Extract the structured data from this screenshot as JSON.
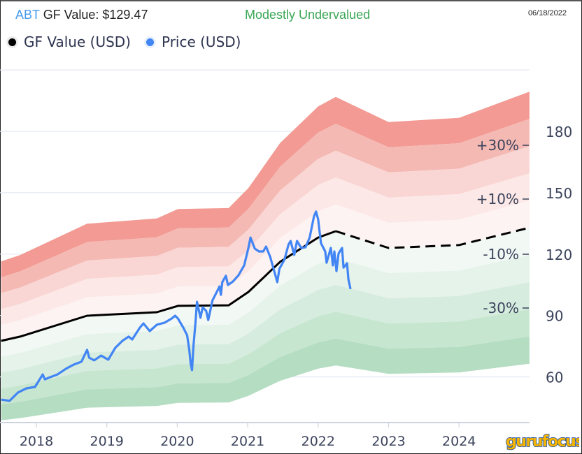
{
  "header": {
    "ticker": "ABT",
    "gf_value_text": " GF Value: $129.47",
    "valuation_status": "Modestly Undervalued",
    "date": "06/18/2022"
  },
  "legend": [
    {
      "label": "GF Value (USD)",
      "color": "#000000"
    },
    {
      "label": "Price (USD)",
      "color": "#4285f4"
    }
  ],
  "logo_text": "gurufocus",
  "colors": {
    "price": "#4285f4",
    "gf_value": "#000000",
    "status_green": "#3aa655",
    "ticker_blue": "#4a9bec",
    "band_red": [
      "#f29a93",
      "#f5b9b4",
      "#f9d6d3",
      "#fce8e6",
      "#fdf3f2"
    ],
    "band_green": [
      "#f2f8f4",
      "#e6f3ea",
      "#d6ecde",
      "#c6e6d0",
      "#b4ddc2"
    ]
  },
  "chart_data": {
    "type": "line",
    "title": "ABT GF Value",
    "xlabel": "",
    "ylabel": "",
    "xlim": [
      2017.5,
      2025.0
    ],
    "ylim": [
      42,
      212
    ],
    "x_ticks": [
      "2018",
      "2019",
      "2020",
      "2021",
      "2022",
      "2023",
      "2024"
    ],
    "y_ticks": [
      "60",
      "90",
      "120",
      "150",
      "180"
    ],
    "band_labels": [
      "+30%",
      "+10%",
      "-10%",
      "-30%"
    ],
    "band_multipliers": [
      1.5,
      1.4,
      1.3,
      1.2,
      1.1,
      1.0,
      0.9,
      0.8,
      0.7,
      0.6,
      0.5
    ],
    "grid": true,
    "legend_position": "top-left",
    "series": [
      {
        "name": "GF Value (USD)",
        "projected_from": 2022.25,
        "points": [
          [
            2017.5,
            77.6
          ],
          [
            2017.77,
            79.7
          ],
          [
            2018.72,
            89.9
          ],
          [
            2019.71,
            91.6
          ],
          [
            2020.01,
            94.7
          ],
          [
            2020.73,
            95.0
          ],
          [
            2021.01,
            101.5
          ],
          [
            2021.46,
            116.2
          ],
          [
            2022.0,
            128.1
          ],
          [
            2022.25,
            131.2
          ],
          [
            2023.0,
            123.0
          ],
          [
            2024.0,
            124.4
          ],
          [
            2025.0,
            132.9
          ]
        ]
      },
      {
        "name": "Price (USD)",
        "points": [
          [
            2017.5,
            48.9
          ],
          [
            2017.62,
            48.3
          ],
          [
            2017.74,
            52.4
          ],
          [
            2017.86,
            54.4
          ],
          [
            2017.98,
            55.1
          ],
          [
            2018.06,
            59.5
          ],
          [
            2018.09,
            61.2
          ],
          [
            2018.12,
            58.8
          ],
          [
            2018.2,
            59.9
          ],
          [
            2018.3,
            61.2
          ],
          [
            2018.42,
            64.0
          ],
          [
            2018.53,
            66.0
          ],
          [
            2018.64,
            67.4
          ],
          [
            2018.72,
            73.2
          ],
          [
            2018.75,
            69.4
          ],
          [
            2018.82,
            68.1
          ],
          [
            2018.92,
            70.4
          ],
          [
            2019.02,
            68.4
          ],
          [
            2019.12,
            74.2
          ],
          [
            2019.22,
            77.6
          ],
          [
            2019.31,
            79.7
          ],
          [
            2019.36,
            78.3
          ],
          [
            2019.47,
            84.1
          ],
          [
            2019.52,
            86.1
          ],
          [
            2019.61,
            82.4
          ],
          [
            2019.71,
            85.5
          ],
          [
            2019.82,
            86.5
          ],
          [
            2019.92,
            88.5
          ],
          [
            2019.97,
            89.9
          ],
          [
            2020.01,
            88.5
          ],
          [
            2020.09,
            83.8
          ],
          [
            2020.14,
            80.3
          ],
          [
            2020.17,
            73.5
          ],
          [
            2020.19,
            66.7
          ],
          [
            2020.21,
            63.3
          ],
          [
            2020.23,
            75.2
          ],
          [
            2020.26,
            87.2
          ],
          [
            2020.28,
            96.7
          ],
          [
            2020.33,
            88.9
          ],
          [
            2020.36,
            94.0
          ],
          [
            2020.41,
            92.3
          ],
          [
            2020.44,
            87.8
          ],
          [
            2020.5,
            97.4
          ],
          [
            2020.54,
            100.1
          ],
          [
            2020.6,
            104.2
          ],
          [
            2020.62,
            100.1
          ],
          [
            2020.64,
            106.3
          ],
          [
            2020.69,
            109.4
          ],
          [
            2020.72,
            104.9
          ],
          [
            2020.79,
            106.6
          ],
          [
            2020.87,
            109.7
          ],
          [
            2020.95,
            114.5
          ],
          [
            2021.01,
            123.0
          ],
          [
            2021.04,
            128.1
          ],
          [
            2021.1,
            122.7
          ],
          [
            2021.16,
            121.3
          ],
          [
            2021.22,
            121.3
          ],
          [
            2021.26,
            123.7
          ],
          [
            2021.32,
            118.6
          ],
          [
            2021.39,
            110.0
          ],
          [
            2021.42,
            106.3
          ],
          [
            2021.45,
            112.8
          ],
          [
            2021.52,
            117.2
          ],
          [
            2021.58,
            124.7
          ],
          [
            2021.61,
            126.4
          ],
          [
            2021.66,
            119.6
          ],
          [
            2021.7,
            126.4
          ],
          [
            2021.76,
            123.0
          ],
          [
            2021.82,
            123.3
          ],
          [
            2021.88,
            128.1
          ],
          [
            2021.94,
            138.4
          ],
          [
            2021.97,
            140.8
          ],
          [
            2022.0,
            137.0
          ],
          [
            2022.04,
            125.4
          ],
          [
            2022.1,
            121.3
          ],
          [
            2022.12,
            115.8
          ],
          [
            2022.18,
            123.0
          ],
          [
            2022.21,
            114.5
          ],
          [
            2022.23,
            121.3
          ],
          [
            2022.26,
            111.7
          ],
          [
            2022.29,
            120.3
          ],
          [
            2022.34,
            123.0
          ],
          [
            2022.36,
            113.4
          ],
          [
            2022.41,
            115.5
          ],
          [
            2022.43,
            107.6
          ],
          [
            2022.46,
            102.9
          ]
        ]
      }
    ]
  }
}
